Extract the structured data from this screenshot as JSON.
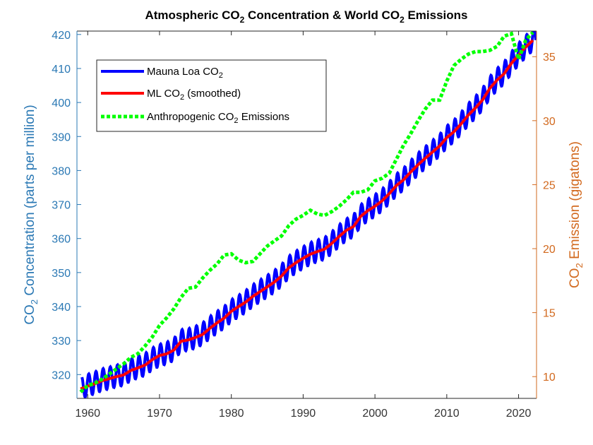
{
  "chart_data": {
    "type": "line",
    "title": {
      "pre": "Atmospheric CO",
      "sub1": "2",
      "mid": " Concentration & World CO",
      "sub2": "2",
      "post": " Emissions"
    },
    "ylabel_left": {
      "pre": "CO",
      "sub": "2",
      "post": " Concentration (parts per million)"
    },
    "ylabel_right": {
      "pre": "CO",
      "sub": "2",
      "post": " Emission (gigatons)"
    },
    "xlim": [
      1958.5,
      2022.5
    ],
    "ylim_left": [
      313,
      421
    ],
    "ylim_right": [
      8.3,
      37
    ],
    "x_ticks": [
      1960,
      1970,
      1980,
      1990,
      2000,
      2010,
      2020
    ],
    "y_left_ticks": [
      320,
      330,
      340,
      350,
      360,
      370,
      380,
      390,
      400,
      410,
      420
    ],
    "y_right_ticks": [
      10,
      15,
      20,
      25,
      30,
      35
    ],
    "legend_position": "top-left",
    "colors": {
      "mauna_loa": "#0000ff",
      "smoothed": "#ff0000",
      "emissions": "#00ff00",
      "left_axis": "#2a78b4",
      "right_axis": "#d2691e"
    },
    "series": [
      {
        "name": {
          "pre": "Mauna Loa CO",
          "sub": "2",
          "post": ""
        },
        "axis": "left",
        "style": "solid-seasonal",
        "seasonal_amplitude_ppm": 3.2,
        "x": [
          1959,
          1960,
          1961,
          1962,
          1963,
          1964,
          1965,
          1966,
          1967,
          1968,
          1969,
          1970,
          1971,
          1972,
          1973,
          1974,
          1975,
          1976,
          1977,
          1978,
          1979,
          1980,
          1981,
          1982,
          1983,
          1984,
          1985,
          1986,
          1987,
          1988,
          1989,
          1990,
          1991,
          1992,
          1993,
          1994,
          1995,
          1996,
          1997,
          1998,
          1999,
          2000,
          2001,
          2002,
          2003,
          2004,
          2005,
          2006,
          2007,
          2008,
          2009,
          2010,
          2011,
          2012,
          2013,
          2014,
          2015,
          2016,
          2017,
          2018,
          2019,
          2020,
          2021,
          2022
        ],
        "values": [
          316.0,
          316.9,
          317.6,
          318.5,
          319.0,
          319.6,
          320.0,
          321.4,
          322.2,
          323.0,
          324.6,
          325.7,
          326.3,
          327.4,
          330.0,
          330.3,
          331.0,
          332.0,
          333.8,
          335.4,
          336.8,
          338.8,
          340.1,
          341.5,
          343.2,
          344.6,
          346.0,
          347.4,
          349.2,
          351.6,
          353.1,
          354.4,
          355.6,
          356.4,
          357.1,
          358.8,
          360.8,
          362.6,
          363.7,
          366.7,
          368.4,
          369.7,
          371.3,
          373.5,
          375.8,
          377.5,
          379.8,
          381.9,
          383.8,
          385.6,
          387.4,
          389.9,
          391.6,
          393.9,
          396.5,
          398.6,
          401.0,
          404.4,
          406.8,
          408.7,
          411.7,
          414.2,
          416.5,
          418.5
        ]
      },
      {
        "name": {
          "pre": "ML CO",
          "sub": "2",
          "post": " (smoothed)"
        },
        "axis": "left",
        "style": "solid",
        "x": [
          1959,
          1960,
          1961,
          1962,
          1963,
          1964,
          1965,
          1966,
          1967,
          1968,
          1969,
          1970,
          1971,
          1972,
          1973,
          1974,
          1975,
          1976,
          1977,
          1978,
          1979,
          1980,
          1981,
          1982,
          1983,
          1984,
          1985,
          1986,
          1987,
          1988,
          1989,
          1990,
          1991,
          1992,
          1993,
          1994,
          1995,
          1996,
          1997,
          1998,
          1999,
          2000,
          2001,
          2002,
          2003,
          2004,
          2005,
          2006,
          2007,
          2008,
          2009,
          2010,
          2011,
          2012,
          2013,
          2014,
          2015,
          2016,
          2017,
          2018,
          2019,
          2020,
          2021,
          2022
        ],
        "values": [
          315.8,
          316.6,
          317.3,
          318.2,
          318.8,
          319.4,
          319.9,
          321.2,
          322.0,
          322.8,
          324.4,
          325.6,
          326.1,
          327.2,
          329.8,
          330.2,
          330.9,
          331.8,
          333.6,
          335.2,
          336.6,
          338.6,
          340.0,
          341.3,
          343.0,
          344.4,
          345.8,
          347.2,
          349.0,
          351.4,
          352.9,
          354.2,
          355.4,
          356.2,
          356.9,
          358.6,
          360.6,
          362.4,
          363.5,
          366.5,
          368.2,
          369.5,
          371.1,
          373.2,
          375.6,
          377.3,
          379.6,
          381.7,
          383.6,
          385.4,
          387.2,
          389.7,
          391.4,
          393.7,
          396.3,
          398.4,
          400.8,
          404.2,
          406.6,
          408.5,
          411.5,
          414.0,
          416.3,
          418.3
        ]
      },
      {
        "name": {
          "pre": "Anthropogenic CO",
          "sub": "2",
          "post": " Emissions"
        },
        "axis": "right",
        "style": "dotted",
        "x": [
          1959,
          1960,
          1961,
          1962,
          1963,
          1964,
          1965,
          1966,
          1967,
          1968,
          1969,
          1970,
          1971,
          1972,
          1973,
          1974,
          1975,
          1976,
          1977,
          1978,
          1979,
          1980,
          1981,
          1982,
          1983,
          1984,
          1985,
          1986,
          1987,
          1988,
          1989,
          1990,
          1991,
          1992,
          1993,
          1994,
          1995,
          1996,
          1997,
          1998,
          1999,
          2000,
          2001,
          2002,
          2003,
          2004,
          2005,
          2006,
          2007,
          2008,
          2009,
          2010,
          2011,
          2012,
          2013,
          2014,
          2015,
          2016,
          2017,
          2018,
          2019,
          2020,
          2021,
          2022
        ],
        "values": [
          8.8,
          9.3,
          9.5,
          9.8,
          10.2,
          10.6,
          11.0,
          11.5,
          11.8,
          12.4,
          13.1,
          14.0,
          14.6,
          15.3,
          16.2,
          16.9,
          17.0,
          17.7,
          18.3,
          18.8,
          19.5,
          19.6,
          19.1,
          18.9,
          19.0,
          19.6,
          20.2,
          20.6,
          21.0,
          21.8,
          22.3,
          22.6,
          23.0,
          22.7,
          22.6,
          22.9,
          23.3,
          23.8,
          24.4,
          24.4,
          24.6,
          25.3,
          25.5,
          25.9,
          27.0,
          28.1,
          29.0,
          30.0,
          30.9,
          31.6,
          31.6,
          33.1,
          34.3,
          34.8,
          35.2,
          35.4,
          35.4,
          35.5,
          35.8,
          36.6,
          36.8,
          34.8,
          36.3,
          36.9
        ]
      }
    ]
  }
}
